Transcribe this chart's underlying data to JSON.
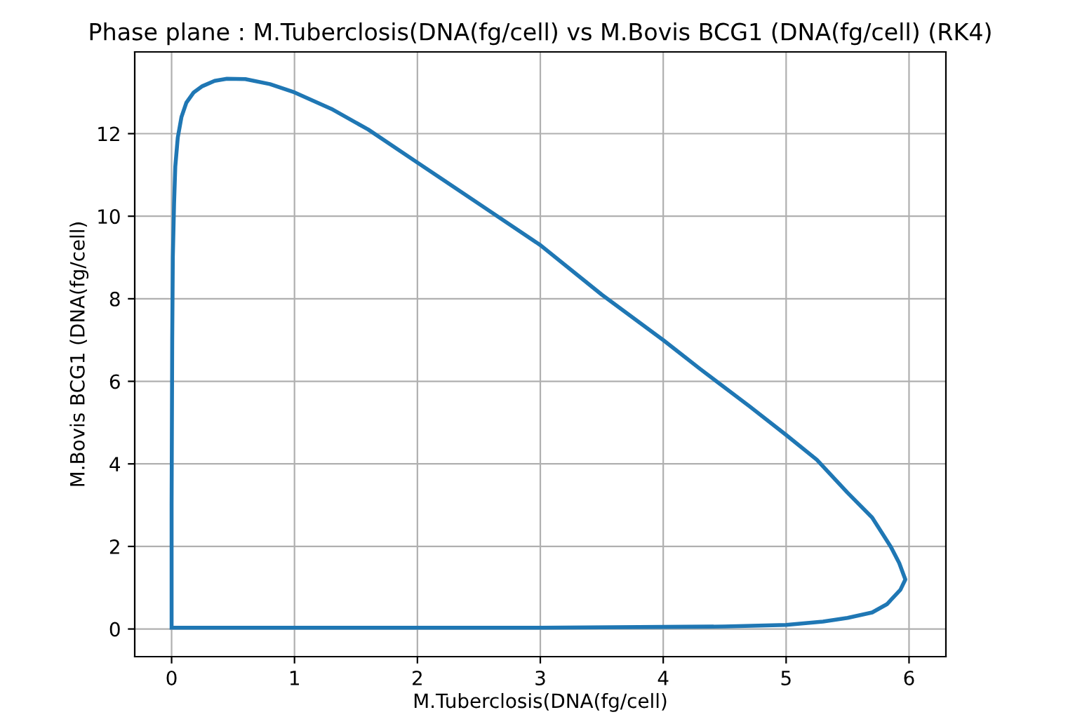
{
  "chart_data": {
    "type": "line",
    "title": "Phase plane : M.Tuberclosis(DNA(fg/cell) vs M.Bovis BCG1 (DNA(fg/cell) (RK4)",
    "xlabel": "M.Tuberclosis(DNA(fg/cell)",
    "ylabel": "M.Bovis BCG1 (DNA(fg/cell)",
    "series": [
      {
        "color": "#1f77b4",
        "x": [
          0,
          0.5,
          1,
          2,
          3,
          4,
          4.5,
          5,
          5.3,
          5.5,
          5.7,
          5.82,
          5.93,
          5.97,
          5.92,
          5.85,
          5.7,
          5.5,
          5.25,
          5.0,
          4.7,
          4.3,
          4.0,
          3.5,
          3.0,
          2.5,
          2.0,
          1.6,
          1.3,
          1.0,
          0.8,
          0.6,
          0.45,
          0.35,
          0.25,
          0.18,
          0.12,
          0.08,
          0.05,
          0.03,
          0.02,
          0.01,
          0.005,
          0.0,
          0.0
        ],
        "values": [
          0.03,
          0.03,
          0.03,
          0.03,
          0.03,
          0.05,
          0.06,
          0.1,
          0.18,
          0.27,
          0.4,
          0.6,
          0.95,
          1.2,
          1.6,
          2.0,
          2.7,
          3.3,
          4.1,
          4.7,
          5.4,
          6.3,
          7.0,
          8.1,
          9.3,
          10.3,
          11.3,
          12.1,
          12.6,
          13.0,
          13.2,
          13.32,
          13.33,
          13.28,
          13.15,
          13.0,
          12.75,
          12.4,
          11.9,
          11.2,
          10.3,
          9.0,
          7.0,
          3.0,
          0.05
        ]
      }
    ],
    "xlim": [
      -0.3,
      6.3
    ],
    "ylim": [
      -0.67,
      13.98
    ],
    "xticks": [
      0,
      1,
      2,
      3,
      4,
      5,
      6
    ],
    "yticks": [
      0,
      2,
      4,
      6,
      8,
      10,
      12
    ],
    "grid": true,
    "marker": "none",
    "line_style": "solid"
  }
}
